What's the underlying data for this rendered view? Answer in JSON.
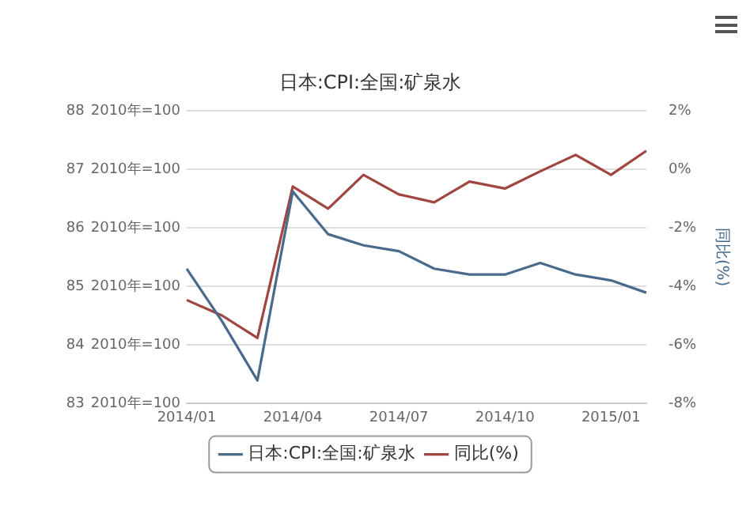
{
  "chart_data": {
    "type": "line",
    "title": "日本:CPI:全国:矿泉水",
    "y2label": "同比(%)",
    "categories": [
      "2014/01",
      null,
      null,
      "2014/04",
      null,
      null,
      "2014/07",
      null,
      null,
      "2014/10",
      null,
      null,
      "2015/01",
      null
    ],
    "series": [
      {
        "name": "日本:CPI:全国:矿泉水",
        "color": "#4a6a8c",
        "values": [
          85.3,
          84.4,
          83.39,
          86.62,
          85.89,
          85.7,
          85.6,
          85.3,
          85.2,
          85.2,
          85.4,
          85.2,
          85.1,
          84.89
        ]
      },
      {
        "name": "同比(%)",
        "color": "#a04540",
        "axis": "y2",
        "values": [
          -4.47,
          -5.0,
          -5.77,
          -0.59,
          -1.35,
          -0.19,
          -0.86,
          -1.13,
          -0.42,
          -0.66,
          -0.07,
          0.49,
          -0.19,
          0.63
        ]
      }
    ],
    "ylabel": "2010年=100",
    "ylim": [
      83,
      88
    ],
    "yticks": [
      83,
      84,
      85,
      86,
      87,
      88
    ],
    "y2lim": [
      -8,
      2
    ],
    "y2ticks": [
      {
        "value": -8,
        "label": "-8%"
      },
      {
        "value": -6,
        "label": "-6%"
      },
      {
        "value": -4,
        "label": "-4%"
      },
      {
        "value": -2,
        "label": "-2%"
      },
      {
        "value": 0,
        "label": "0%"
      },
      {
        "value": 2,
        "label": "2%"
      }
    ],
    "grid": "y",
    "legend": "bottom",
    "marker": "none"
  }
}
